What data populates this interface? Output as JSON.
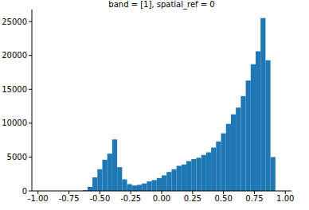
{
  "chart_data": {
    "type": "histogram",
    "title": "band = [1], spatial_ref = 0",
    "bins": [
      -1,
      -0.96,
      -0.92,
      -0.88,
      -0.84,
      -0.8,
      -0.76,
      -0.72,
      -0.68,
      -0.64,
      -0.6,
      -0.56,
      -0.52,
      -0.48,
      -0.44,
      -0.4,
      -0.36,
      -0.32,
      -0.28,
      -0.24,
      -0.2,
      -0.16,
      -0.12,
      -0.08,
      -0.04,
      0,
      0.04,
      0.08,
      0.12,
      0.16,
      0.2,
      0.24,
      0.28,
      0.32,
      0.36,
      0.4,
      0.44,
      0.48,
      0.52,
      0.56,
      0.6,
      0.64,
      0.68,
      0.72,
      0.76,
      0.8,
      0.84,
      0.88,
      0.92,
      0.96,
      1
    ],
    "values": [
      0,
      0,
      0,
      0,
      0,
      0,
      0,
      0,
      0,
      100,
      600,
      2000,
      3200,
      4600,
      5500,
      7600,
      3500,
      1700,
      1000,
      800,
      900,
      1100,
      1400,
      1600,
      1900,
      2300,
      2800,
      3200,
      3700,
      3900,
      4400,
      4700,
      4900,
      5300,
      5700,
      6400,
      7300,
      8500,
      9900,
      11300,
      12300,
      14000,
      16300,
      18700,
      20600,
      25500,
      19300,
      5000,
      0,
      0
    ],
    "color": "#1f77b4",
    "xlim": [
      -1.05,
      1.05
    ],
    "xticks": [
      {
        "value": -1,
        "label": "-1.00"
      },
      {
        "value": -0.75,
        "label": "-0.75"
      },
      {
        "value": -0.5,
        "label": "-0.50"
      },
      {
        "value": -0.25,
        "label": "-0.25"
      },
      {
        "value": 0,
        "label": "0.00"
      },
      {
        "value": 0.25,
        "label": "0.25"
      },
      {
        "value": 0.5,
        "label": "0.50"
      },
      {
        "value": 0.75,
        "label": "0.75"
      },
      {
        "value": 1,
        "label": "1.00"
      }
    ],
    "ylim": [
      0,
      26775
    ],
    "yticks": [
      0,
      5000,
      10000,
      15000,
      20000,
      25000
    ],
    "grid": false
  }
}
